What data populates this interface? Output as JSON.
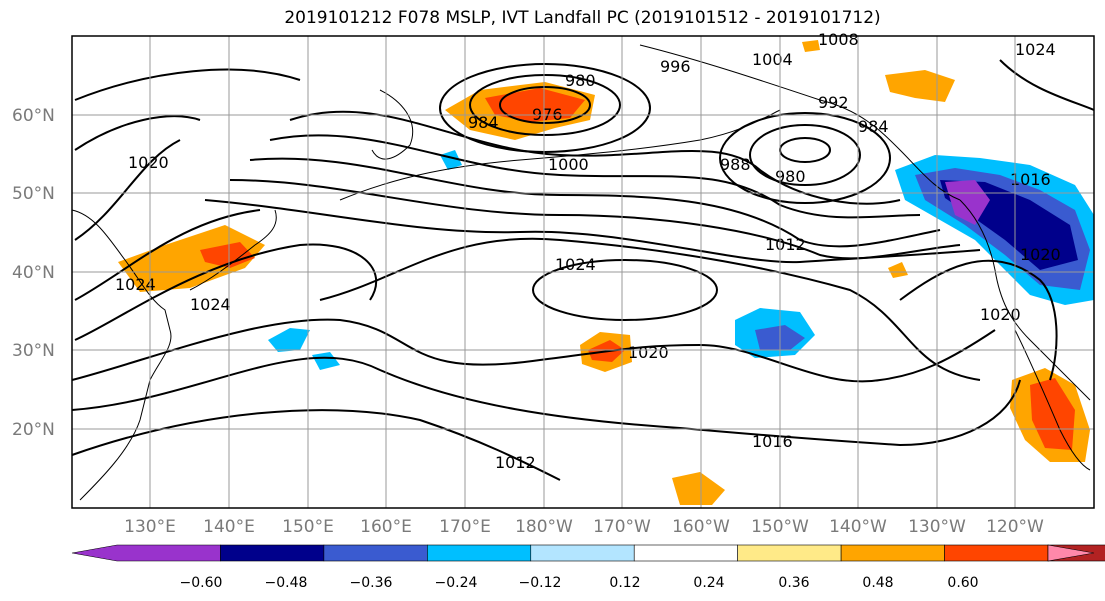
{
  "title": "2019101212 F078 MSLP, IVT Landfall PC (2019101512 - 2019101712)",
  "lat_labels": [
    "60°N",
    "50°N",
    "40°N",
    "30°N",
    "20°N"
  ],
  "lon_labels": [
    "130°E",
    "140°E",
    "150°E",
    "160°E",
    "170°E",
    "180°W",
    "170°W",
    "160°W",
    "150°W",
    "140°W",
    "130°W",
    "120°W"
  ],
  "contour_labels": [
    "980",
    "976",
    "984",
    "996",
    "1004",
    "1008",
    "1024",
    "992",
    "984",
    "980",
    "1000",
    "988",
    "1012",
    "1020",
    "1024",
    "1024",
    "1020",
    "1016",
    "1012",
    "1020",
    "1020",
    "1016",
    "1024"
  ],
  "colorbar": {
    "ticks": [
      "−0.60",
      "−0.48",
      "−0.36",
      "−0.24",
      "−0.12",
      "0.12",
      "0.24",
      "0.36",
      "0.48",
      "0.60"
    ],
    "colors": [
      "#9933cc",
      "#00008b",
      "#3a5bd0",
      "#00bfff",
      "#b3e5ff",
      "#ffffff",
      "#ffea88",
      "#ffa500",
      "#ff4500",
      "#b22222",
      "#ff88aa"
    ]
  }
}
